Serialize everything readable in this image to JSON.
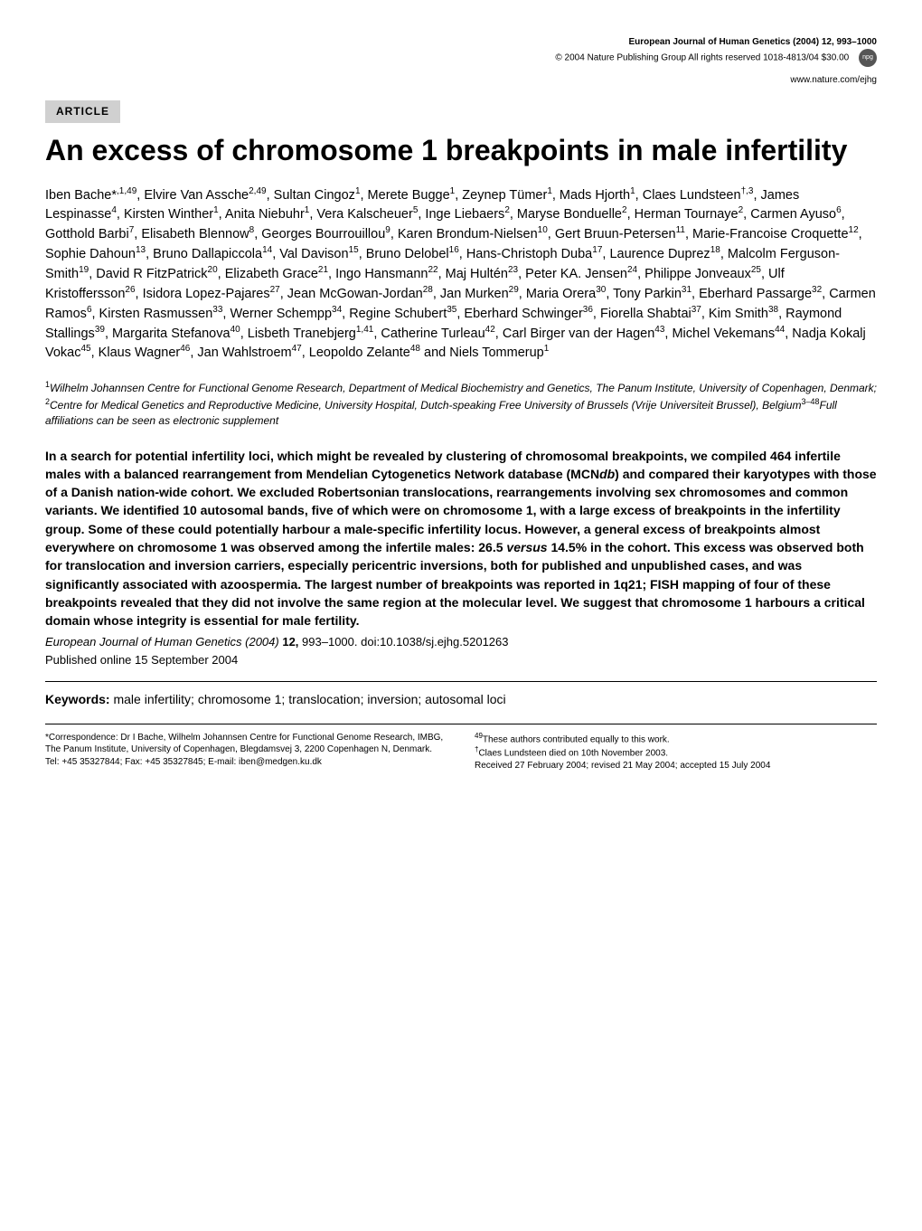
{
  "header": {
    "journal": "European Journal of Human Genetics (2004) 12, 993–1000",
    "copyright": "© 2004 Nature Publishing Group   All rights reserved 1018-4813/04 $30.00",
    "website": "www.nature.com/ejhg",
    "npg": "npg"
  },
  "badge": "ARTICLE",
  "title": "An excess of chromosome 1 breakpoints in male infertility",
  "authors_html": "Iben Bache*<sup>,1,49</sup>, Elvire Van Assche<sup>2,49</sup>, Sultan Cingoz<sup>1</sup>, Merete Bugge<sup>1</sup>, Zeynep Tümer<sup>1</sup>, Mads Hjorth<sup>1</sup>, Claes Lundsteen<sup>†,3</sup>, James Lespinasse<sup>4</sup>, Kirsten Winther<sup>1</sup>, Anita Niebuhr<sup>1</sup>, Vera Kalscheuer<sup>5</sup>, Inge Liebaers<sup>2</sup>, Maryse Bonduelle<sup>2</sup>, Herman Tournaye<sup>2</sup>, Carmen Ayuso<sup>6</sup>, Gotthold Barbi<sup>7</sup>, Elisabeth Blennow<sup>8</sup>, Georges Bourrouillou<sup>9</sup>, Karen Brondum-Nielsen<sup>10</sup>, Gert Bruun-Petersen<sup>11</sup>, Marie-Francoise Croquette<sup>12</sup>, Sophie Dahoun<sup>13</sup>, Bruno Dallapiccola<sup>14</sup>, Val Davison<sup>15</sup>, Bruno Delobel<sup>16</sup>, Hans-Christoph Duba<sup>17</sup>, Laurence Duprez<sup>18</sup>, Malcolm Ferguson-Smith<sup>19</sup>, David R FitzPatrick<sup>20</sup>, Elizabeth Grace<sup>21</sup>, Ingo Hansmann<sup>22</sup>, Maj Hultén<sup>23</sup>, Peter KA. Jensen<sup>24</sup>, Philippe Jonveaux<sup>25</sup>, Ulf Kristoffersson<sup>26</sup>, Isidora Lopez-Pajares<sup>27</sup>, Jean McGowan-Jordan<sup>28</sup>, Jan Murken<sup>29</sup>, Maria Orera<sup>30</sup>, Tony Parkin<sup>31</sup>, Eberhard Passarge<sup>32</sup>, Carmen Ramos<sup>6</sup>, Kirsten Rasmussen<sup>33</sup>, Werner Schempp<sup>34</sup>, Regine Schubert<sup>35</sup>, Eberhard Schwinger<sup>36</sup>, Fiorella Shabtai<sup>37</sup>, Kim Smith<sup>38</sup>, Raymond Stallings<sup>39</sup>, Margarita Stefanova<sup>40</sup>, Lisbeth Tranebjerg<sup>1,41</sup>, Catherine Turleau<sup>42</sup>, Carl Birger van der Hagen<sup>43</sup>, Michel Vekemans<sup>44</sup>, Nadja Kokalj Vokac<sup>45</sup>, Klaus Wagner<sup>46</sup>, Jan Wahlstroem<sup>47</sup>, Leopoldo Zelante<sup>48</sup> and Niels Tommerup<sup>1</sup>",
  "affiliations_html": "<sup>1</sup>Wilhelm Johannsen Centre for Functional Genome Research, Department of Medical Biochemistry and Genetics, The Panum Institute, University of Copenhagen, Denmark; <sup>2</sup>Centre for Medical Genetics and Reproductive Medicine, University Hospital, Dutch-speaking Free University of Brussels (Vrije Universiteit Brussel), Belgium<sup>3–48</sup>Full affiliations can be seen as electronic supplement",
  "abstract_html": "In a search for potential infertility loci, which might be revealed by clustering of chromosomal breakpoints, we compiled 464 infertile males with a balanced rearrangement from Mendelian Cytogenetics Network database (MCN<span class=\"italic\">db</span>) and compared their karyotypes with those of a Danish nation-wide cohort. We excluded Robertsonian translocations, rearrangements involving sex chromosomes and common variants. We identified 10 autosomal bands, five of which were on chromosome 1, with a large excess of breakpoints in the infertility group. Some of these could potentially harbour a male-specific infertility locus. However, a general excess of breakpoints almost everywhere on chromosome 1 was observed among the infertile males: 26.5 <span class=\"italic\">versus</span> 14.5% in the cohort. This excess was observed both for translocation and inversion carriers, especially pericentric inversions, both for published and unpublished cases, and was significantly associated with azoospermia. The largest number of breakpoints was reported in 1q21; FISH mapping of four of these breakpoints revealed that they did not involve the same region at the molecular level. We suggest that chromosome 1 harbours a critical domain whose integrity is essential for male fertility.",
  "citation": {
    "journal": "European Journal of Human Genetics",
    "year": "(2004)",
    "volume": "12,",
    "pages": "993–1000.",
    "doi": "doi:10.1038/sj.ejhg.5201263"
  },
  "pub_online": "Published online 15 September 2004",
  "keywords": {
    "label": "Keywords:",
    "text": "male infertility; chromosome 1; translocation; inversion; autosomal loci"
  },
  "footer": {
    "left": "*Correspondence: Dr I Bache, Wilhelm Johannsen Centre for Functional Genome Research, IMBG, The Panum Institute, University of Copenhagen, Blegdamsvej 3, 2200 Copenhagen N, Denmark. Tel: +45 35327844; Fax: +45 35327845; E-mail: iben@medgen.ku.dk",
    "right_line1": "49These authors contributed equally to this work.",
    "right_line2": "†Claes Lundsteen died on 10th November 2003.",
    "right_line3": "Received 27 February 2004; revised 21 May 2004; accepted 15 July 2004"
  }
}
